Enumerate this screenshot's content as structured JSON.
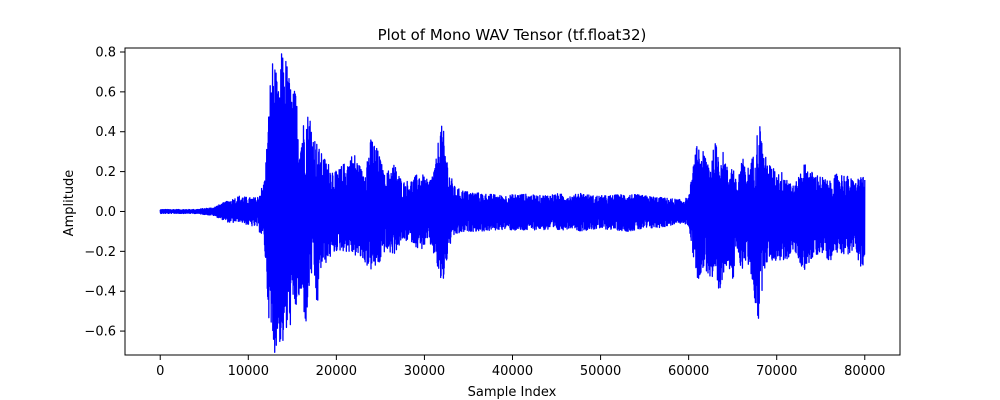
{
  "chart_data": {
    "type": "line",
    "title": "Plot of Mono WAV Tensor (tf.float32)",
    "xlabel": "Sample Index",
    "ylabel": "Amplitude",
    "xlim": [
      -4000,
      84000
    ],
    "ylim": [
      -0.72,
      0.82
    ],
    "x_ticks": [
      0,
      10000,
      20000,
      30000,
      40000,
      50000,
      60000,
      70000,
      80000
    ],
    "x_tick_labels": [
      "0",
      "10000",
      "20000",
      "30000",
      "40000",
      "50000",
      "60000",
      "70000",
      "80000"
    ],
    "y_ticks": [
      -0.6,
      -0.4,
      -0.2,
      0.0,
      0.2,
      0.4,
      0.6,
      0.8
    ],
    "y_tick_labels": [
      "−0.6",
      "−0.4",
      "−0.2",
      "0.0",
      "0.2",
      "0.4",
      "0.6",
      "0.8"
    ],
    "grid": false,
    "series_color": "#0000ff",
    "series": [
      {
        "x": [
          0,
          2000,
          4000,
          6000,
          7000,
          8000,
          9000,
          10000,
          11000,
          11800,
          12200,
          12600,
          13000,
          13400,
          13800,
          14200,
          14600,
          15000,
          15400,
          15800,
          16200,
          16600,
          17000,
          17400,
          17800,
          18200,
          19000,
          20000,
          21000,
          22000,
          23000,
          24000,
          24800,
          25500,
          26500,
          27500,
          28500,
          29500,
          30500,
          31300,
          31800,
          32200,
          32800,
          33500,
          35000,
          37000,
          39000,
          41000,
          43000,
          45000,
          47000,
          47500,
          49000,
          51000,
          53000,
          55000,
          57000,
          59000,
          60000,
          60500,
          61000,
          61500,
          62000,
          62500,
          63000,
          63500,
          64000,
          64500,
          65000,
          65500,
          66000,
          66500,
          67000,
          67500,
          68000,
          68500,
          69000,
          70000,
          71000,
          72000,
          73000,
          74000,
          75000,
          76000,
          77000,
          78000,
          79000,
          79500,
          80000
        ],
        "max": [
          0.01,
          0.01,
          0.01,
          0.02,
          0.04,
          0.06,
          0.08,
          0.07,
          0.07,
          0.15,
          0.4,
          0.77,
          0.76,
          0.6,
          0.81,
          0.8,
          0.7,
          0.6,
          0.62,
          0.4,
          0.45,
          0.5,
          0.5,
          0.4,
          0.35,
          0.3,
          0.25,
          0.2,
          0.25,
          0.3,
          0.2,
          0.38,
          0.3,
          0.18,
          0.25,
          0.15,
          0.16,
          0.2,
          0.15,
          0.25,
          0.45,
          0.4,
          0.2,
          0.12,
          0.1,
          0.09,
          0.08,
          0.09,
          0.08,
          0.09,
          0.08,
          0.1,
          0.08,
          0.08,
          0.09,
          0.08,
          0.07,
          0.06,
          0.07,
          0.22,
          0.35,
          0.3,
          0.3,
          0.25,
          0.35,
          0.3,
          0.3,
          0.2,
          0.25,
          0.12,
          0.3,
          0.2,
          0.25,
          0.3,
          0.48,
          0.3,
          0.25,
          0.2,
          0.2,
          0.12,
          0.25,
          0.2,
          0.18,
          0.15,
          0.2,
          0.18,
          0.15,
          0.19,
          0.16
        ],
        "min": [
          -0.01,
          -0.01,
          -0.01,
          -0.02,
          -0.04,
          -0.06,
          -0.05,
          -0.07,
          -0.08,
          -0.15,
          -0.45,
          -0.7,
          -0.71,
          -0.65,
          -0.69,
          -0.65,
          -0.6,
          -0.55,
          -0.5,
          -0.45,
          -0.48,
          -0.6,
          -0.35,
          -0.3,
          -0.52,
          -0.3,
          -0.25,
          -0.2,
          -0.2,
          -0.22,
          -0.25,
          -0.3,
          -0.28,
          -0.2,
          -0.22,
          -0.15,
          -0.15,
          -0.2,
          -0.15,
          -0.25,
          -0.37,
          -0.35,
          -0.18,
          -0.12,
          -0.1,
          -0.1,
          -0.09,
          -0.1,
          -0.09,
          -0.1,
          -0.08,
          -0.1,
          -0.09,
          -0.09,
          -0.1,
          -0.09,
          -0.08,
          -0.06,
          -0.07,
          -0.22,
          -0.35,
          -0.3,
          -0.3,
          -0.35,
          -0.4,
          -0.47,
          -0.3,
          -0.25,
          -0.38,
          -0.2,
          -0.3,
          -0.25,
          -0.3,
          -0.45,
          -0.59,
          -0.3,
          -0.25,
          -0.25,
          -0.25,
          -0.2,
          -0.3,
          -0.25,
          -0.2,
          -0.25,
          -0.2,
          -0.22,
          -0.2,
          -0.28,
          -0.31
        ]
      }
    ]
  }
}
